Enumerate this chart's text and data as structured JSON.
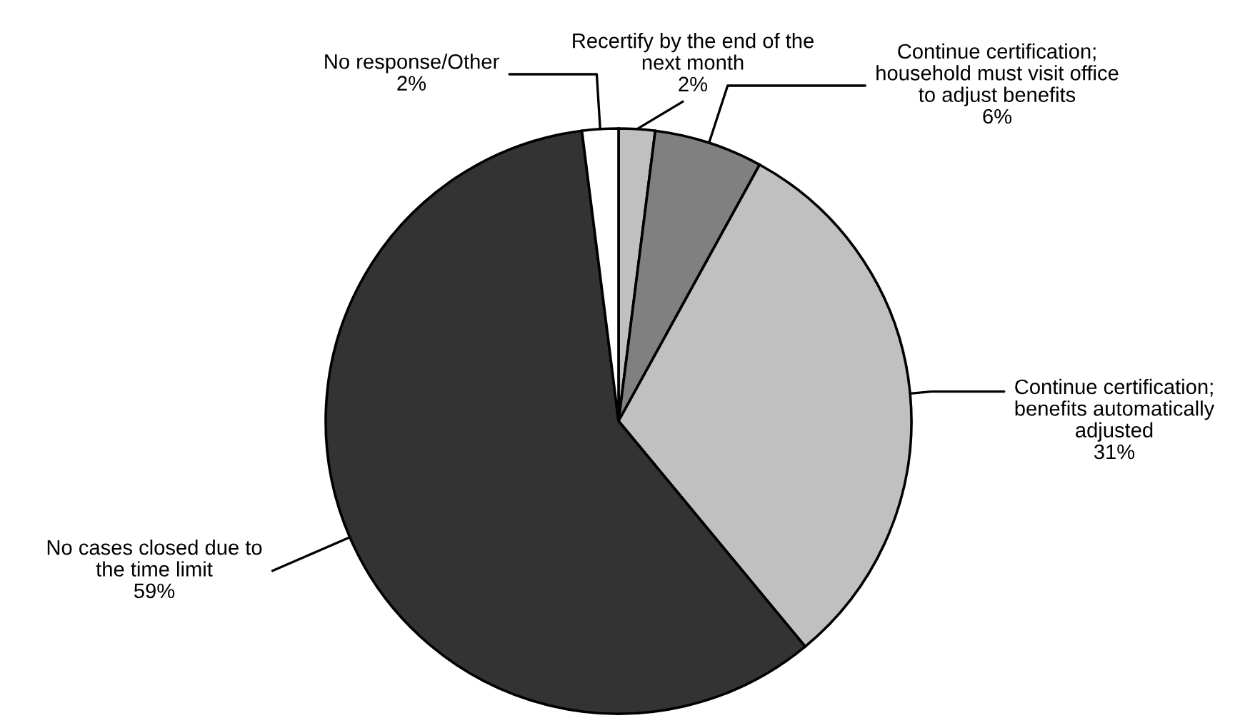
{
  "chart_data": {
    "type": "pie",
    "categories": [
      "Recertify by the end of the\nnext month",
      "Continue certification;\nhousehold must visit office\nto adjust benefits",
      "Continue certification;\nbenefits automatically\nadjusted",
      "No cases closed due to\nthe time limit",
      "No response/Other"
    ],
    "values": [
      2,
      6,
      31,
      59,
      2
    ],
    "colors": [
      "#c0c0c0",
      "#808080",
      "#c0c0c0",
      "#333333",
      "#ffffff"
    ],
    "value_labels": [
      "2%",
      "6%",
      "31%",
      "59%",
      "2%"
    ]
  }
}
